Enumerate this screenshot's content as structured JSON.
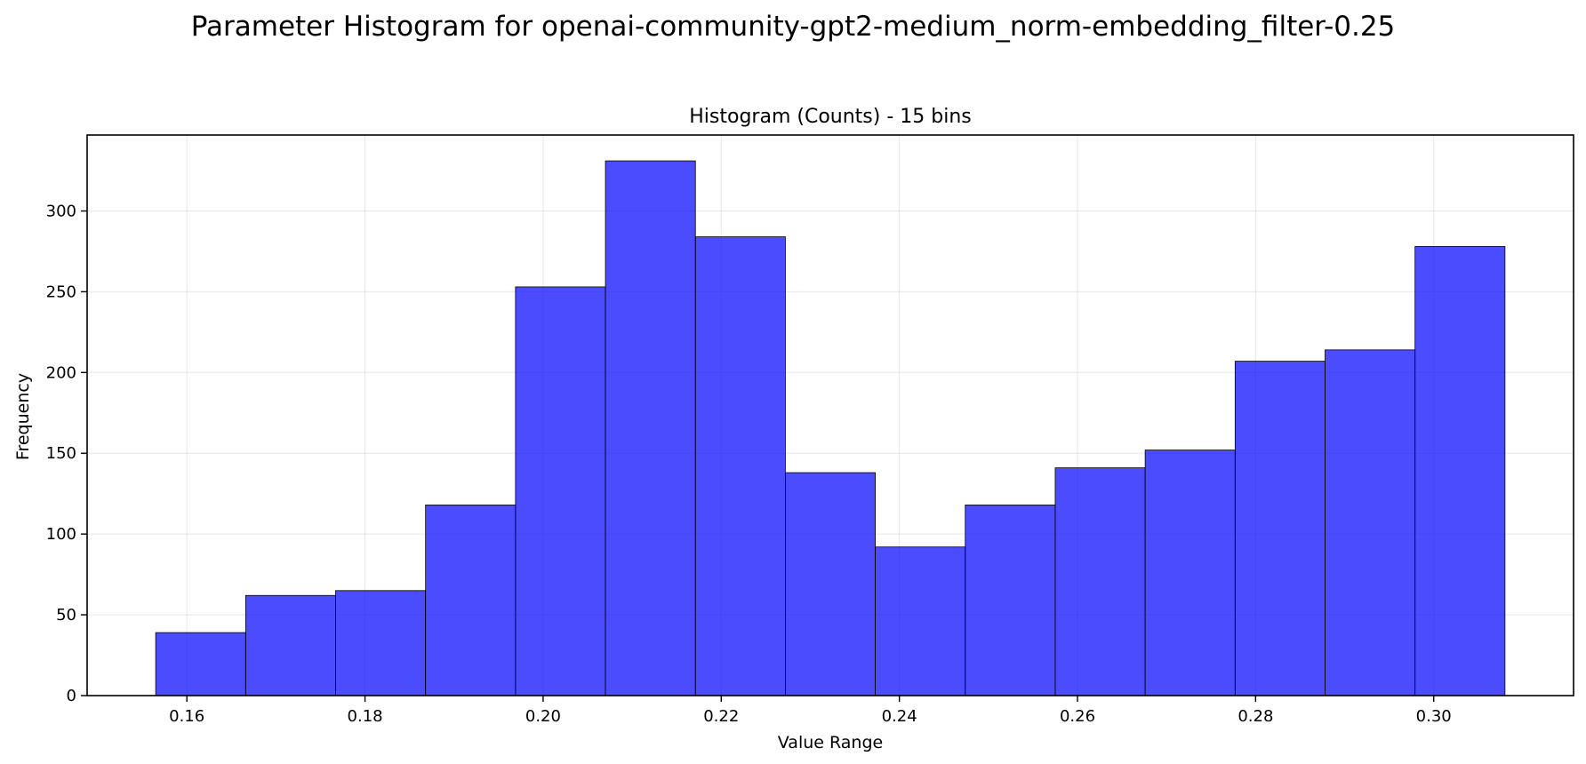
{
  "chart_data": {
    "type": "bar",
    "suptitle": "Parameter Histogram for openai-community-gpt2-medium_norm-embedding_filter-0.25",
    "title": "Histogram (Counts) - 15 bins",
    "xlabel": "Value Range",
    "ylabel": "Frequency",
    "bin_edges": [
      0.1565,
      0.1666,
      0.1767,
      0.1868,
      0.1969,
      0.207,
      0.2171,
      0.2272,
      0.2373,
      0.2474,
      0.2575,
      0.2676,
      0.2777,
      0.2878,
      0.2979,
      0.308
    ],
    "values": [
      39,
      62,
      65,
      118,
      253,
      331,
      284,
      138,
      92,
      118,
      141,
      152,
      207,
      214,
      278
    ],
    "xlim": [
      0.1488,
      0.3157
    ],
    "ylim": [
      0,
      347
    ],
    "xticks": [
      0.16,
      0.18,
      0.2,
      0.22,
      0.24,
      0.26,
      0.28,
      0.3
    ],
    "xtick_labels": [
      "0.16",
      "0.18",
      "0.20",
      "0.22",
      "0.24",
      "0.26",
      "0.28",
      "0.30"
    ],
    "yticks": [
      0,
      50,
      100,
      150,
      200,
      250,
      300
    ],
    "ytick_labels": [
      "0",
      "50",
      "100",
      "150",
      "200",
      "250",
      "300"
    ],
    "grid": true,
    "colors": {
      "bar": "#0000ff",
      "edge": "#000000"
    }
  }
}
